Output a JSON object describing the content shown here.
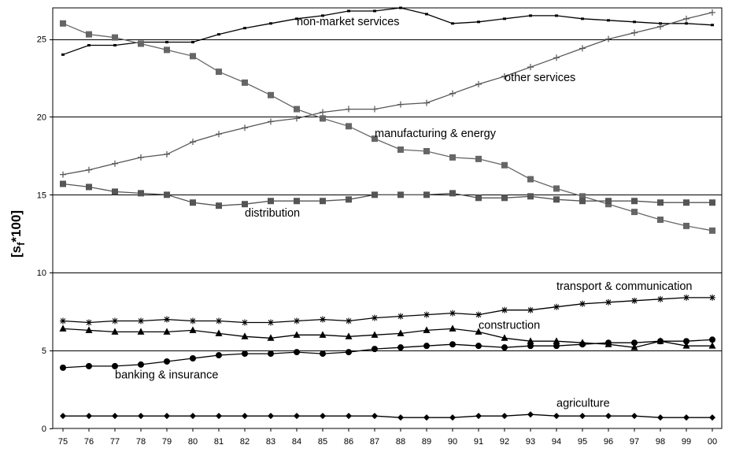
{
  "chart_data": {
    "type": "line",
    "title": "",
    "xlabel": "",
    "ylabel_base": "[s",
    "ylabel_sub": "f",
    "ylabel_tail": "*100]",
    "ylim": [
      0,
      27
    ],
    "yticks": [
      0,
      5,
      10,
      15,
      20,
      25
    ],
    "grid": "horizontal",
    "categories": [
      "75",
      "76",
      "77",
      "78",
      "79",
      "80",
      "81",
      "82",
      "83",
      "84",
      "85",
      "86",
      "87",
      "88",
      "89",
      "90",
      "91",
      "92",
      "93",
      "94",
      "95",
      "96",
      "97",
      "98",
      "99",
      "00"
    ],
    "series": [
      {
        "name": "non-market services",
        "marker": "dash",
        "color": "#000000",
        "values": [
          24.0,
          24.6,
          24.6,
          24.8,
          24.8,
          24.8,
          25.3,
          25.7,
          26.0,
          26.3,
          26.5,
          26.8,
          26.8,
          27.0,
          26.6,
          26.0,
          26.1,
          26.3,
          26.5,
          26.5,
          26.3,
          26.2,
          26.1,
          26.0,
          26.0,
          25.9
        ]
      },
      {
        "name": "other services",
        "marker": "plus",
        "color": "#555555",
        "values": [
          16.3,
          16.6,
          17.0,
          17.4,
          17.6,
          18.4,
          18.9,
          19.3,
          19.7,
          19.9,
          20.3,
          20.5,
          20.5,
          20.8,
          20.9,
          21.5,
          22.1,
          22.6,
          23.2,
          23.8,
          24.4,
          25.0,
          25.4,
          25.8,
          26.3,
          26.7
        ]
      },
      {
        "name": "manufacturing & energy",
        "marker": "square",
        "color": "#666666",
        "values": [
          26.0,
          25.3,
          25.1,
          24.7,
          24.3,
          23.9,
          22.9,
          22.2,
          21.4,
          20.5,
          19.9,
          19.4,
          18.6,
          17.9,
          17.8,
          17.4,
          17.3,
          16.9,
          16.0,
          15.4,
          14.9,
          14.4,
          13.9,
          13.4,
          13.0,
          12.7
        ]
      },
      {
        "name": "distribution",
        "marker": "square",
        "color": "#555555",
        "values": [
          15.7,
          15.5,
          15.2,
          15.1,
          15.0,
          14.5,
          14.3,
          14.4,
          14.6,
          14.6,
          14.6,
          14.7,
          15.0,
          15.0,
          15.0,
          15.1,
          14.8,
          14.8,
          14.9,
          14.7,
          14.6,
          14.6,
          14.6,
          14.5,
          14.5,
          14.5
        ]
      },
      {
        "name": "transport & communication",
        "marker": "star",
        "color": "#000000",
        "values": [
          6.9,
          6.8,
          6.9,
          6.9,
          7.0,
          6.9,
          6.9,
          6.8,
          6.8,
          6.9,
          7.0,
          6.9,
          7.1,
          7.2,
          7.3,
          7.4,
          7.3,
          7.6,
          7.6,
          7.8,
          8.0,
          8.1,
          8.2,
          8.3,
          8.4,
          8.4
        ]
      },
      {
        "name": "construction",
        "marker": "triangle",
        "color": "#000000",
        "values": [
          6.4,
          6.3,
          6.2,
          6.2,
          6.2,
          6.3,
          6.1,
          5.9,
          5.8,
          6.0,
          6.0,
          5.9,
          6.0,
          6.1,
          6.3,
          6.4,
          6.2,
          5.8,
          5.6,
          5.6,
          5.5,
          5.4,
          5.2,
          5.6,
          5.3,
          5.3
        ]
      },
      {
        "name": "banking & insurance",
        "marker": "circle",
        "color": "#000000",
        "values": [
          3.9,
          4.0,
          4.0,
          4.1,
          4.3,
          4.5,
          4.7,
          4.8,
          4.8,
          4.9,
          4.8,
          4.9,
          5.1,
          5.2,
          5.3,
          5.4,
          5.3,
          5.2,
          5.3,
          5.3,
          5.4,
          5.5,
          5.5,
          5.6,
          5.6,
          5.7
        ]
      },
      {
        "name": "agriculture",
        "marker": "diamond",
        "color": "#000000",
        "values": [
          0.8,
          0.8,
          0.8,
          0.8,
          0.8,
          0.8,
          0.8,
          0.8,
          0.8,
          0.8,
          0.8,
          0.8,
          0.8,
          0.7,
          0.7,
          0.7,
          0.8,
          0.8,
          0.9,
          0.8,
          0.8,
          0.8,
          0.8,
          0.7,
          0.7,
          0.7
        ]
      }
    ],
    "annotations": [
      {
        "series": "non-market services",
        "text": "non-market services",
        "at_x": "84",
        "at_y": 25.9
      },
      {
        "series": "other services",
        "text": "other services",
        "at_x": "92",
        "at_y": 22.3
      },
      {
        "series": "manufacturing & energy",
        "text": "manufacturing & energy",
        "at_x": "87",
        "at_y": 18.7
      },
      {
        "series": "distribution",
        "text": "distribution",
        "at_x": "82",
        "at_y": 13.6
      },
      {
        "series": "transport & communication",
        "text": "transport & communication",
        "at_x": "94",
        "at_y": 8.9
      },
      {
        "series": "construction",
        "text": "construction",
        "at_x": "91",
        "at_y": 6.4
      },
      {
        "series": "banking & insurance",
        "text": "banking & insurance",
        "at_x": "77",
        "at_y": 3.2
      },
      {
        "series": "agriculture",
        "text": "agriculture",
        "at_x": "94",
        "at_y": 1.4
      }
    ]
  }
}
